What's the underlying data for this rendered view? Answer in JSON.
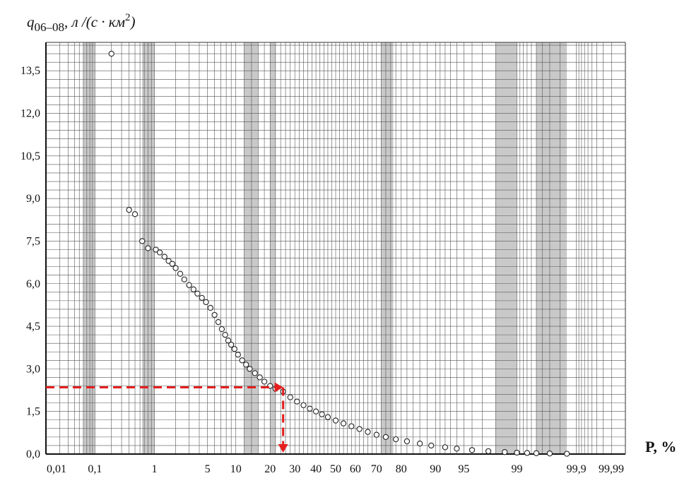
{
  "chart_data": {
    "type": "scatter",
    "title": "",
    "ylabel": {
      "symbol": "q",
      "subscript": "06–08",
      "units": ", л /(с · км",
      "superscript": "2",
      "close": ")"
    },
    "xlabel": "P, %",
    "x_scale": "probability (normal) scale",
    "xlim": [
      0.01,
      99.99
    ],
    "ylim": [
      0,
      14.5
    ],
    "grid": true,
    "x_ticks": [
      {
        "p": 0.01,
        "label": "0,01"
      },
      {
        "p": 0.1,
        "label": "0,1"
      },
      {
        "p": 1,
        "label": "1"
      },
      {
        "p": 5,
        "label": "5"
      },
      {
        "p": 10,
        "label": "10"
      },
      {
        "p": 20,
        "label": "20"
      },
      {
        "p": 30,
        "label": "30"
      },
      {
        "p": 40,
        "label": "40"
      },
      {
        "p": 50,
        "label": "50"
      },
      {
        "p": 60,
        "label": "60"
      },
      {
        "p": 70,
        "label": "70"
      },
      {
        "p": 80,
        "label": "80"
      },
      {
        "p": 90,
        "label": "90"
      },
      {
        "p": 95,
        "label": "95"
      },
      {
        "p": 99,
        "label": "99"
      },
      {
        "p": 99.9,
        "label": "99,9"
      },
      {
        "p": 99.99,
        "label": "99,99"
      }
    ],
    "y_ticks": [
      {
        "value": 0,
        "label": "0,0"
      },
      {
        "value": 1.5,
        "label": "1,5"
      },
      {
        "value": 3,
        "label": "3,0"
      },
      {
        "value": 4.5,
        "label": "4,5"
      },
      {
        "value": 6,
        "label": "6,0"
      },
      {
        "value": 7.5,
        "label": "7,5"
      },
      {
        "value": 9,
        "label": "9,0"
      },
      {
        "value": 10.5,
        "label": "10,5"
      },
      {
        "value": 12,
        "label": "12,0"
      },
      {
        "value": 13.5,
        "label": "13,5"
      }
    ],
    "series": [
      {
        "marker": "open circle",
        "points": [
          [
            0.2,
            14.1
          ],
          [
            0.4,
            8.6
          ],
          [
            0.5,
            8.45
          ],
          [
            0.65,
            7.5
          ],
          [
            0.8,
            7.25
          ],
          [
            1.05,
            7.2
          ],
          [
            1.2,
            7.1
          ],
          [
            1.4,
            6.95
          ],
          [
            1.6,
            6.8
          ],
          [
            1.8,
            6.7
          ],
          [
            2.0,
            6.55
          ],
          [
            2.3,
            6.35
          ],
          [
            2.6,
            6.15
          ],
          [
            3.0,
            5.95
          ],
          [
            3.4,
            5.8
          ],
          [
            3.8,
            5.65
          ],
          [
            4.3,
            5.5
          ],
          [
            4.8,
            5.35
          ],
          [
            5.4,
            5.15
          ],
          [
            6.0,
            4.9
          ],
          [
            6.6,
            4.65
          ],
          [
            7.2,
            4.4
          ],
          [
            7.8,
            4.2
          ],
          [
            8.4,
            4.0
          ],
          [
            9.0,
            3.85
          ],
          [
            9.7,
            3.7
          ],
          [
            10.5,
            3.5
          ],
          [
            11.5,
            3.3
          ],
          [
            12.5,
            3.15
          ],
          [
            13.5,
            3.0
          ],
          [
            15.0,
            2.85
          ],
          [
            16.5,
            2.7
          ],
          [
            18.0,
            2.55
          ],
          [
            20.0,
            2.4
          ],
          [
            22.0,
            2.3
          ],
          [
            25.0,
            2.2
          ],
          [
            28.0,
            2.0
          ],
          [
            31.0,
            1.85
          ],
          [
            34.0,
            1.72
          ],
          [
            37.0,
            1.6
          ],
          [
            40.0,
            1.5
          ],
          [
            43.0,
            1.4
          ],
          [
            46.0,
            1.3
          ],
          [
            50.0,
            1.18
          ],
          [
            54.0,
            1.08
          ],
          [
            58.0,
            0.98
          ],
          [
            62.0,
            0.88
          ],
          [
            66.0,
            0.78
          ],
          [
            70.0,
            0.68
          ],
          [
            74.0,
            0.6
          ],
          [
            78.0,
            0.52
          ],
          [
            82.0,
            0.45
          ],
          [
            86.0,
            0.37
          ],
          [
            89.0,
            0.3
          ],
          [
            92.0,
            0.24
          ],
          [
            94.0,
            0.19
          ],
          [
            96.0,
            0.14
          ],
          [
            97.5,
            0.1
          ],
          [
            98.5,
            0.07
          ],
          [
            99.0,
            0.05
          ],
          [
            99.3,
            0.04
          ],
          [
            99.5,
            0.03
          ],
          [
            99.7,
            0.02
          ],
          [
            99.85,
            0.01
          ]
        ]
      }
    ],
    "annotation": {
      "color": "#e41e1e",
      "style": "dashed with arrowheads",
      "p": 25,
      "q": 2.35
    }
  }
}
